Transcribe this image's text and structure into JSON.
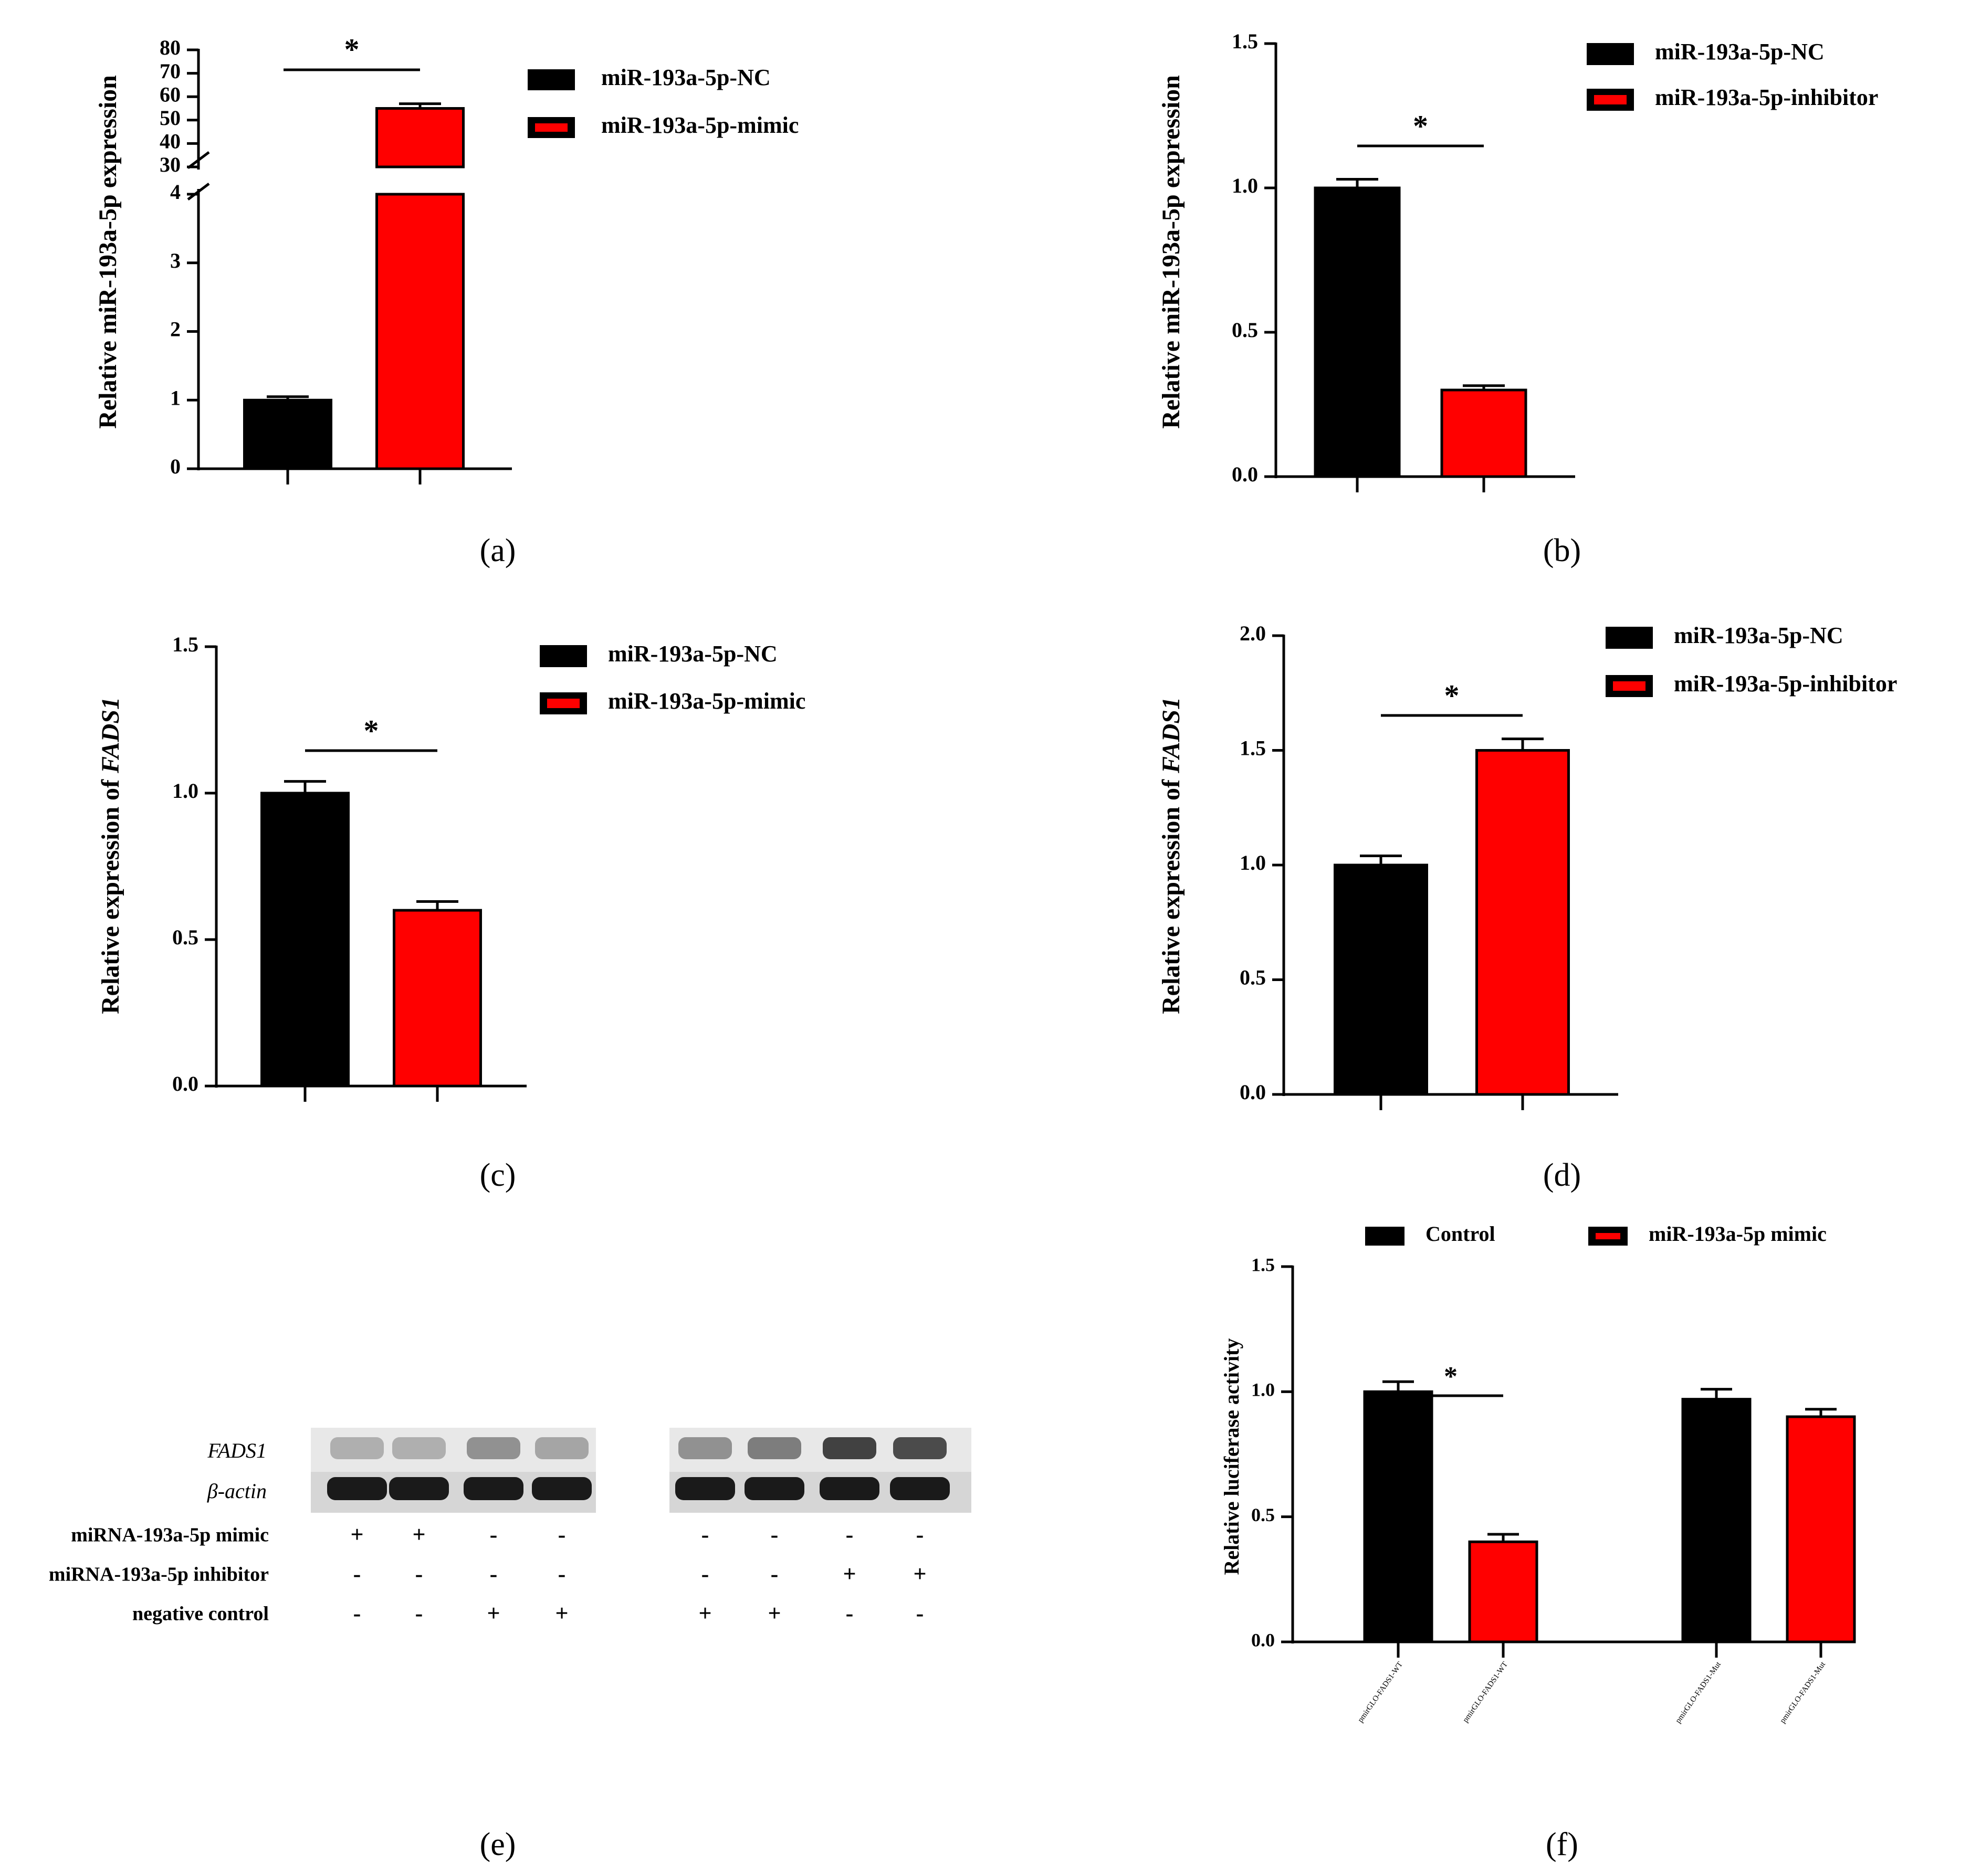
{
  "colors": {
    "nc": "#000000",
    "treat": "#ff0000",
    "axis": "#000000"
  },
  "chart_data": [
    {
      "id": "a",
      "type": "bar",
      "panel_label": "(a)",
      "ylabel": "Relative miR-193a-5p expression",
      "categories": [
        "miR-193a-5p-NC",
        "miR-193a-5p-mimic"
      ],
      "values": [
        1.0,
        55.0
      ],
      "errors": [
        0.05,
        2.0
      ],
      "colors": [
        "#000000",
        "#ff0000"
      ],
      "axis_break": {
        "lower": [
          0,
          4
        ],
        "upper": [
          30,
          80
        ]
      },
      "yticks_lower": [
        "0",
        "1",
        "2",
        "3",
        "4"
      ],
      "yticks_upper": [
        "30",
        "40",
        "50",
        "60",
        "70",
        "80"
      ],
      "legend": [
        {
          "label": "miR-193a-5p-NC",
          "color": "#000000"
        },
        {
          "label": "miR-193a-5p-mimic",
          "color": "#ff0000"
        }
      ],
      "significance": [
        {
          "between": [
            0,
            1
          ],
          "label": "*"
        }
      ]
    },
    {
      "id": "b",
      "type": "bar",
      "panel_label": "(b)",
      "ylabel": "Relative miR-193a-5p expression",
      "categories": [
        "miR-193a-5p-NC",
        "miR-193a-5p-inhibitor"
      ],
      "values": [
        1.0,
        0.3
      ],
      "errors": [
        0.03,
        0.015
      ],
      "colors": [
        "#000000",
        "#ff0000"
      ],
      "ylim": [
        0,
        1.5
      ],
      "yticks": [
        "0.0",
        "0.5",
        "1.0",
        "1.5"
      ],
      "legend": [
        {
          "label": "miR-193a-5p-NC",
          "color": "#000000"
        },
        {
          "label": "miR-193a-5p-inhibitor",
          "color": "#ff0000"
        }
      ],
      "significance": [
        {
          "between": [
            0,
            1
          ],
          "label": "*"
        }
      ]
    },
    {
      "id": "c",
      "type": "bar",
      "panel_label": "(c)",
      "ylabel_prefix": "Relative expression of ",
      "ylabel_gene": "FADS1",
      "categories": [
        "miR-193a-5p-NC",
        "miR-193a-5p-mimic"
      ],
      "values": [
        1.0,
        0.6
      ],
      "errors": [
        0.04,
        0.03
      ],
      "colors": [
        "#000000",
        "#ff0000"
      ],
      "ylim": [
        0,
        1.5
      ],
      "yticks": [
        "0.0",
        "0.5",
        "1.0",
        "1.5"
      ],
      "legend": [
        {
          "label": "miR-193a-5p-NC",
          "color": "#000000"
        },
        {
          "label": "miR-193a-5p-mimic",
          "color": "#ff0000"
        }
      ],
      "significance": [
        {
          "between": [
            0,
            1
          ],
          "label": "*"
        }
      ]
    },
    {
      "id": "d",
      "type": "bar",
      "panel_label": "(d)",
      "ylabel_prefix": "Relative expression of ",
      "ylabel_gene": "FADS1",
      "categories": [
        "miR-193a-5p-NC",
        "miR-193a-5p-inhibitor"
      ],
      "values": [
        1.0,
        1.5
      ],
      "errors": [
        0.04,
        0.05
      ],
      "colors": [
        "#000000",
        "#ff0000"
      ],
      "ylim": [
        0,
        2.0
      ],
      "yticks": [
        "0.0",
        "0.5",
        "1.0",
        "1.5",
        "2.0"
      ],
      "legend": [
        {
          "label": "miR-193a-5p-NC",
          "color": "#000000"
        },
        {
          "label": "miR-193a-5p-inhibitor",
          "color": "#ff0000"
        }
      ],
      "significance": [
        {
          "between": [
            0,
            1
          ],
          "label": "*"
        }
      ]
    },
    {
      "id": "f",
      "type": "bar",
      "panel_label": "(f)",
      "ylabel": "Relative luciferase activity",
      "categories": [
        "pmirGLO-FADS1-WT",
        "pmirGLO-FADS1-WT",
        "pmirGLO-FADS1-Mut",
        "pmirGLO-FADS1-Mut"
      ],
      "values": [
        1.0,
        0.4,
        0.97,
        0.9
      ],
      "errors": [
        0.04,
        0.03,
        0.04,
        0.03
      ],
      "colors": [
        "#000000",
        "#ff0000",
        "#000000",
        "#ff0000"
      ],
      "ylim": [
        0,
        1.5
      ],
      "yticks": [
        "0.0",
        "0.5",
        "1.0",
        "1.5"
      ],
      "legend": [
        {
          "label": "Control",
          "color": "#000000"
        },
        {
          "label": "miR-193a-5p mimic",
          "color": "#ff0000"
        }
      ],
      "significance": [
        {
          "between": [
            0,
            1
          ],
          "label": "*"
        }
      ]
    }
  ],
  "western_blot": {
    "panel_label": "(e)",
    "bands": [
      {
        "label": "FADS1",
        "intensities": [
          0.3,
          0.3,
          0.45,
          0.35,
          0.45,
          0.55,
          0.85,
          0.8
        ]
      },
      {
        "label": "β-actin",
        "intensities": [
          1.0,
          1.0,
          1.0,
          1.0,
          1.0,
          1.0,
          1.0,
          1.0
        ]
      }
    ],
    "conditions": [
      {
        "label": "miRNA-193a-5p mimic",
        "signs": [
          "+",
          "+",
          "-",
          "-",
          "-",
          "-",
          "-",
          "-"
        ]
      },
      {
        "label": "miRNA-193a-5p inhibitor",
        "signs": [
          "-",
          "-",
          "-",
          "-",
          "-",
          "-",
          "+",
          "+"
        ]
      },
      {
        "label": "negative control",
        "signs": [
          "-",
          "-",
          "+",
          "+",
          "+",
          "+",
          "-",
          "-"
        ]
      }
    ]
  }
}
